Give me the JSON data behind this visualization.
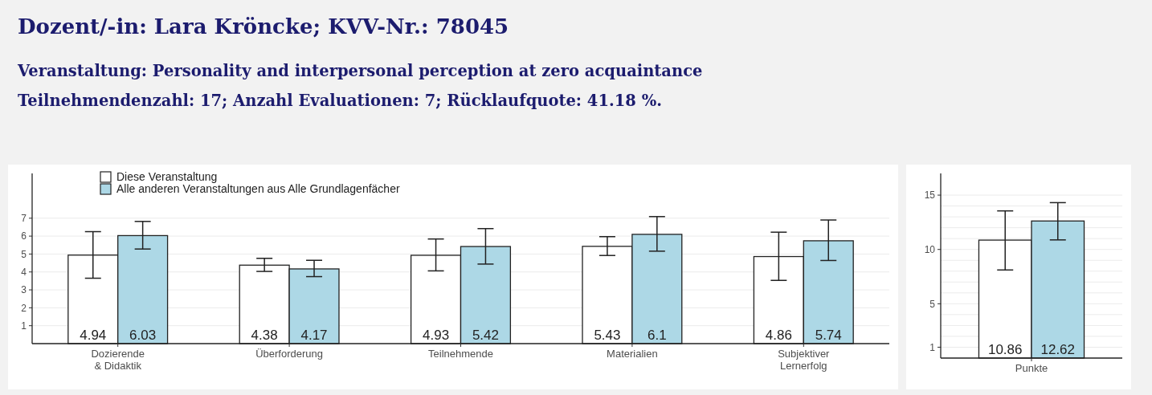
{
  "chart_data": [
    {
      "type": "bar",
      "title": "Dozent/-in: Lara Kröncke; KVV-Nr.: 78045",
      "subtitle": "Veranstaltung: Personality and interpersonal perception at zero acquaintance\nTeilnehmendenzahl: 17; Anzahl Evaluationen: 7; Rücklaufquote: 41.18 %.",
      "categories": [
        "Dozierende\n& Didaktik",
        "Überforderung",
        "Teilnehmende",
        "Materialien",
        "Subjektiver\nLernerfolg"
      ],
      "series": [
        {
          "name": "Diese Veranstaltung",
          "color": "#ffffff",
          "values": [
            4.94,
            4.38,
            4.93,
            5.43,
            4.86
          ],
          "errors": [
            [
              3.65,
              6.25
            ],
            [
              4.03,
              4.76
            ],
            [
              4.06,
              5.84
            ],
            [
              4.92,
              5.97
            ],
            [
              3.53,
              6.22
            ]
          ]
        },
        {
          "name": "Alle anderen Veranstaltungen aus Alle Grundlagenfächer",
          "color": "#add8e6",
          "values": [
            6.03,
            4.17,
            5.42,
            6.1,
            5.74
          ],
          "errors": [
            [
              5.28,
              6.82
            ],
            [
              3.74,
              4.65
            ],
            [
              4.44,
              6.42
            ],
            [
              5.16,
              7.09
            ],
            [
              4.64,
              6.9
            ]
          ]
        }
      ],
      "ylim": [
        0,
        9.5
      ],
      "yticks": [
        1,
        2,
        3,
        4,
        5,
        6,
        7
      ],
      "grid": "y",
      "legend": "top left",
      "data_labels": true
    },
    {
      "type": "bar",
      "categories": [
        "Punkte"
      ],
      "series": [
        {
          "color": "#ffffff",
          "values": [
            10.86
          ],
          "errors": [
            [
              8.11,
              13.55
            ]
          ]
        },
        {
          "color": "#add8e6",
          "values": [
            12.62
          ],
          "errors": [
            [
              10.88,
              14.31
            ]
          ]
        }
      ],
      "ylim": [
        0,
        17
      ],
      "yticks": [
        1,
        {
          "value": 2,
          "label": null
        },
        {
          "value": 3,
          "label": null
        },
        {
          "value": 4,
          "label": null
        },
        5,
        {
          "value": 6,
          "label": null
        },
        {
          "value": 7,
          "label": null
        },
        {
          "value": 8,
          "label": null
        },
        {
          "value": 9,
          "label": null
        },
        10,
        {
          "value": 11,
          "label": null
        },
        {
          "value": 12,
          "label": null
        },
        {
          "value": 13,
          "label": null
        },
        {
          "value": 14,
          "label": null
        },
        15
      ],
      "grid": "y",
      "data_labels": true
    }
  ]
}
